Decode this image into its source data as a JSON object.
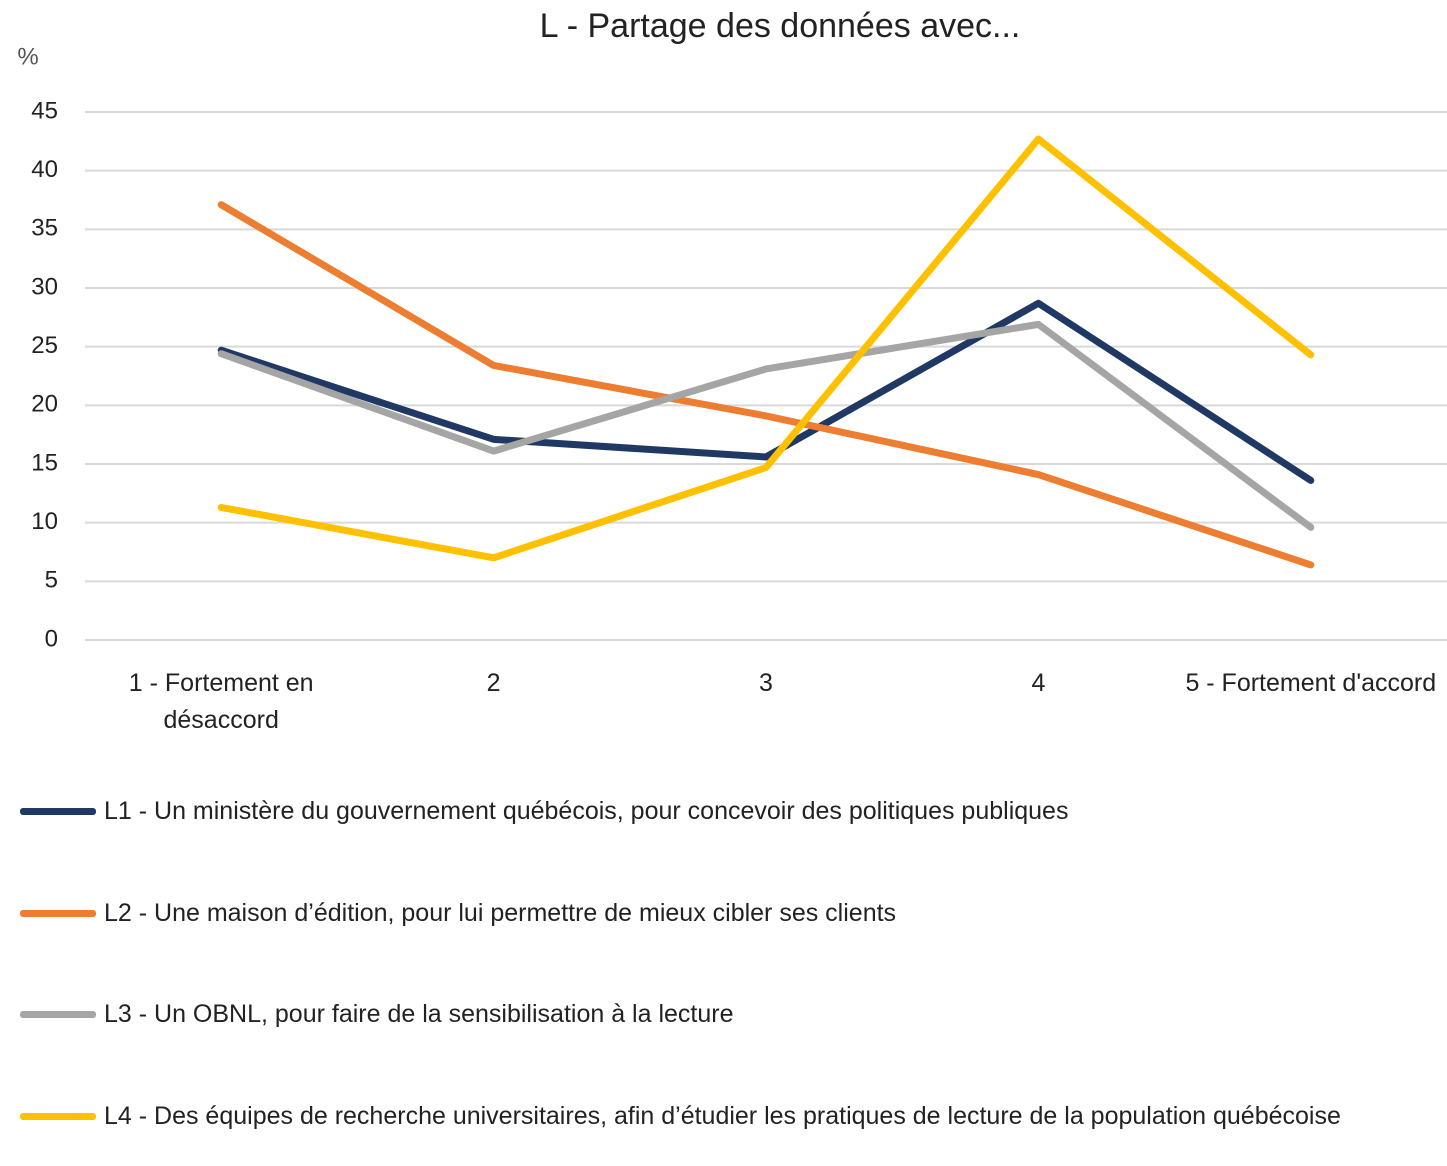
{
  "chart_data": {
    "type": "line",
    "title": "L - Partage des données avec...",
    "y_label": "%",
    "categories": [
      "1 - Fortement en désaccord",
      "2",
      "3",
      "4",
      "5 - Fortement d'accord"
    ],
    "series": [
      {
        "name": "L1 - Un ministère  du gouvernement québécois, pour concevoir des politiques publiques",
        "color": "#203864",
        "values": [
          24.7,
          17.1,
          15.6,
          28.7,
          13.6
        ]
      },
      {
        "name": "L2 - Une maison d’édition, pour lui permettre de mieux cibler ses clients",
        "color": "#ed7d31",
        "values": [
          37.1,
          23.4,
          19.1,
          14.1,
          6.4
        ]
      },
      {
        "name": "L3 - Un OBNL, pour faire de la sensibilisation à la lecture",
        "color": "#a5a5a5",
        "values": [
          24.4,
          16.1,
          23.1,
          26.9,
          9.6
        ]
      },
      {
        "name": "L4 - Des équipes de recherche universitaires, afin d’étudier les pratiques de lecture de la population québécoise",
        "color": "#ffc000",
        "values": [
          11.3,
          7.0,
          14.7,
          42.7,
          24.3
        ]
      }
    ],
    "ylim": [
      0,
      45
    ],
    "yticks": [
      0,
      5,
      10,
      15,
      20,
      25,
      30,
      35,
      40,
      45
    ],
    "grid": true
  }
}
